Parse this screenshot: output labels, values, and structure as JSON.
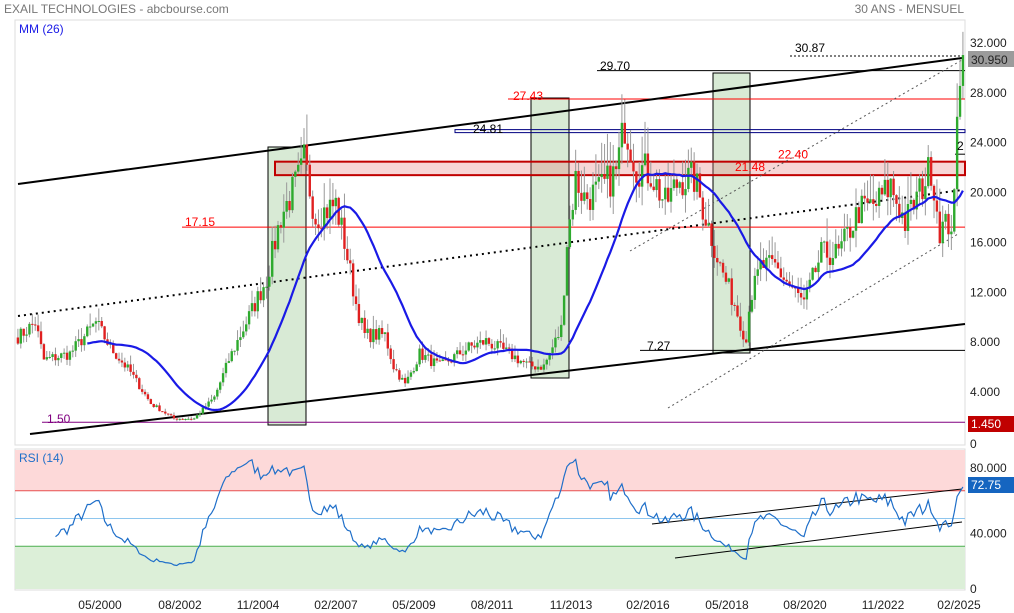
{
  "header": {
    "title": "EXAIL TECHNOLOGIES - abcbourse.com",
    "period": "30 ANS - MENSUEL"
  },
  "colors": {
    "up": "#2eaa2e",
    "down": "#e02020",
    "ma": "#1a1ae6",
    "rsi": "#1f6fc9",
    "zone_green": "#d8ead5",
    "rsi_high": "#fdd9d9",
    "rsi_low": "#dcefd8"
  },
  "chart_data": [
    {
      "type": "candlestick",
      "title": "EXAIL TECHNOLOGIES",
      "indicator_label": "MM (26)",
      "start_month": "1997-12",
      "close_anchors": [
        [
          0,
          8.3
        ],
        [
          2,
          8.5
        ],
        [
          7,
          9.5
        ],
        [
          10,
          6.5
        ],
        [
          19,
          7.0
        ],
        [
          28,
          9.5
        ],
        [
          33,
          7.5
        ],
        [
          40,
          5.5
        ],
        [
          47,
          3.0
        ],
        [
          55,
          1.8
        ],
        [
          62,
          1.8
        ],
        [
          69,
          3.5
        ],
        [
          74,
          6.5
        ],
        [
          81,
          10
        ],
        [
          87,
          13
        ],
        [
          92,
          18
        ],
        [
          99,
          21.5
        ],
        [
          100,
          22.5
        ],
        [
          104,
          18
        ],
        [
          111,
          19
        ],
        [
          114,
          16
        ],
        [
          118,
          11
        ],
        [
          121,
          8.5
        ],
        [
          128,
          8.5
        ],
        [
          131,
          6
        ],
        [
          135,
          4.5
        ],
        [
          140,
          7
        ],
        [
          147,
          6
        ],
        [
          157,
          7.5
        ],
        [
          163,
          8
        ],
        [
          171,
          7
        ],
        [
          178,
          6
        ],
        [
          183,
          6
        ],
        [
          189,
          9
        ],
        [
          191,
          16
        ],
        [
          194,
          21
        ],
        [
          197,
          19.5
        ],
        [
          202,
          20
        ],
        [
          208,
          21.5
        ],
        [
          211,
          25.5
        ],
        [
          215,
          22
        ],
        [
          220,
          21.5
        ],
        [
          225,
          19
        ],
        [
          230,
          21
        ],
        [
          235,
          21
        ],
        [
          239,
          18
        ],
        [
          244,
          14
        ],
        [
          249,
          11
        ],
        [
          253,
          8
        ],
        [
          254,
          11
        ],
        [
          258,
          14
        ],
        [
          263,
          14
        ],
        [
          268,
          12.5
        ],
        [
          273,
          11
        ],
        [
          279,
          15
        ],
        [
          285,
          15
        ],
        [
          292,
          18.5
        ],
        [
          298,
          19
        ],
        [
          303,
          20.5
        ],
        [
          308,
          17.5
        ],
        [
          313,
          20
        ],
        [
          317,
          22
        ],
        [
          320,
          17
        ],
        [
          324,
          17.5
        ],
        [
          325,
          19
        ],
        [
          326,
          26
        ],
        [
          328,
          30.95
        ]
      ],
      "y_ticks": [
        "32.000",
        "28.000",
        "24.000",
        "20.000",
        "16.000",
        "12.000",
        "8.000",
        "4.000",
        "0"
      ],
      "y_tick_values": [
        32,
        28,
        24,
        20,
        16,
        12,
        8,
        4,
        0
      ],
      "ylim": [
        0,
        32
      ],
      "last_price": "30.950",
      "min_price": "1.450",
      "levels": [
        {
          "value": 30.87,
          "label": "30.87",
          "color": "#000000",
          "style": "dotted"
        },
        {
          "value": 29.7,
          "label": "29.70",
          "color": "#000000",
          "style": "solid"
        },
        {
          "value": 27.43,
          "label": "27.43",
          "color": "#ff0000",
          "style": "solid"
        },
        {
          "value": 24.81,
          "label": "24.81",
          "color": "#000080",
          "style": "double"
        },
        {
          "value": 22.4,
          "label": "22.40",
          "color": "#ff0000",
          "style": "zone"
        },
        {
          "value": 21.48,
          "label": "21.48",
          "color": "#ff0000",
          "style": "zone"
        },
        {
          "value": 17.15,
          "label": "17.15",
          "color": "#ff0000",
          "style": "solid"
        },
        {
          "value": 7.27,
          "label": "7.27",
          "color": "#000000",
          "style": "solid"
        },
        {
          "value": 1.5,
          "label": "1.50",
          "color": "#800080",
          "style": "solid"
        },
        {
          "value": 23.0,
          "label": "2",
          "color": "#000000",
          "style": "solid"
        }
      ],
      "x_ticks": [
        "05/2000",
        "08/2002",
        "11/2004",
        "02/2007",
        "05/2009",
        "08/2011",
        "11/2013",
        "02/2016",
        "05/2018",
        "08/2020",
        "11/2022",
        "02/2025"
      ]
    },
    {
      "type": "line",
      "title": "RSI (14)",
      "ylim": [
        0,
        100
      ],
      "y_ticks": [
        "80.000",
        "40.000",
        "0"
      ],
      "y_tick_values": [
        80,
        40,
        0
      ],
      "reference_lines": [
        70,
        50,
        30
      ],
      "last_value": "72.75"
    }
  ]
}
